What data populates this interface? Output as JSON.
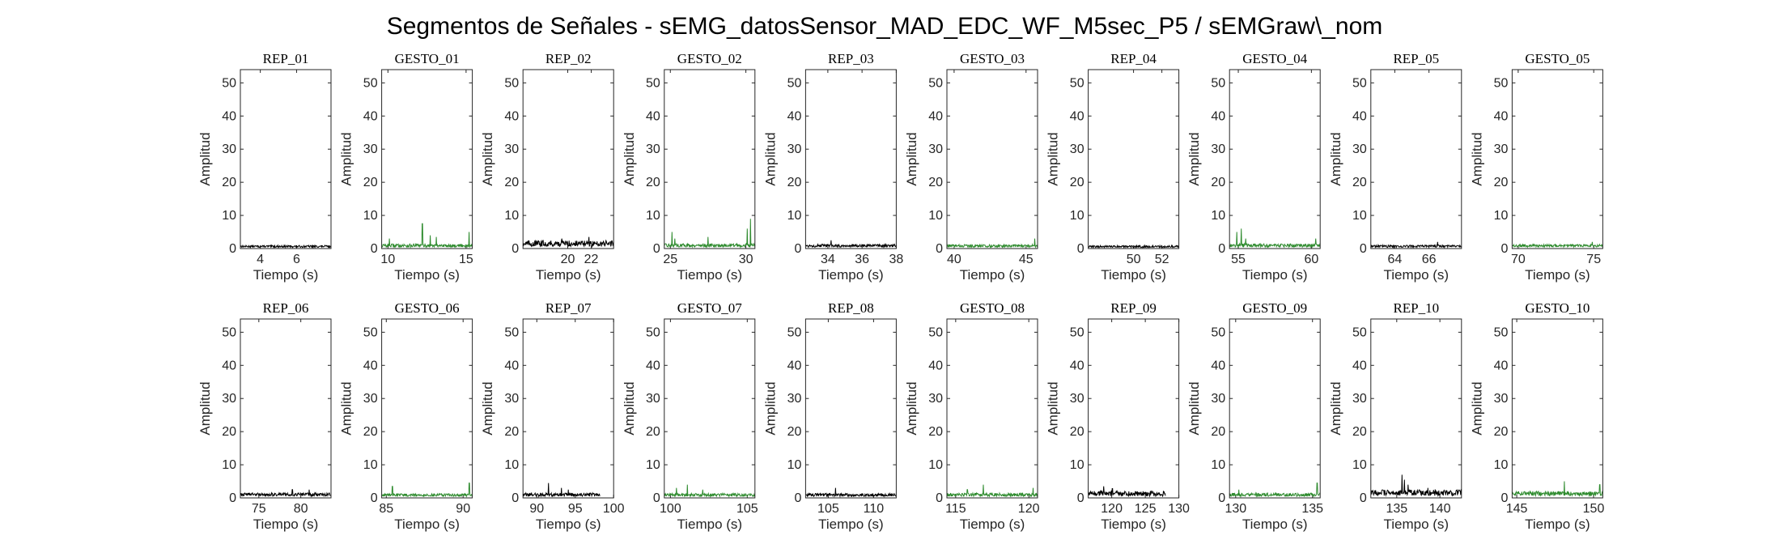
{
  "figure": {
    "title": "Segmentos de Señales - sEMG_datosSensor_MAD_EDC_WF_M5sec_P5 / sEMGraw\\_nom"
  },
  "colors": {
    "rep": "#000000",
    "gesto": "#2e8b2e"
  },
  "chart_data": [
    {
      "type": "line",
      "title": "REP_01",
      "xlabel": "Tiempo (s)",
      "ylabel": "Amplitud",
      "xlim": [
        2.9,
        7.9
      ],
      "xticks": [
        4,
        6
      ],
      "ylim": [
        0,
        54
      ],
      "yticks": [
        0,
        10,
        20,
        30,
        40,
        50
      ],
      "kind": "rep",
      "series": [
        {
          "base": 0.7,
          "noise": 0.6,
          "spikes": []
        }
      ]
    },
    {
      "type": "line",
      "title": "GESTO_01",
      "xlabel": "Tiempo (s)",
      "ylabel": "Amplitud",
      "xlim": [
        9.6,
        15.4
      ],
      "xticks": [
        10,
        15
      ],
      "ylim": [
        0,
        54
      ],
      "yticks": [
        0,
        10,
        20,
        30,
        40,
        50
      ],
      "kind": "gesto",
      "series": [
        {
          "base": 0.8,
          "noise": 1.0,
          "spikes": [
            [
              10.1,
              3
            ],
            [
              12.2,
              7.5
            ],
            [
              12.7,
              4
            ],
            [
              13.1,
              3.5
            ],
            [
              15.2,
              5
            ]
          ]
        }
      ]
    },
    {
      "type": "line",
      "title": "REP_02",
      "xlabel": "Tiempo (s)",
      "ylabel": "Amplitud",
      "xlim": [
        16.2,
        23.9
      ],
      "xticks": [
        20,
        22
      ],
      "ylim": [
        0,
        54
      ],
      "yticks": [
        0,
        10,
        20,
        30,
        40,
        50
      ],
      "kind": "rep",
      "series": [
        {
          "base": 1.2,
          "noise": 1.8,
          "spikes": [
            [
              19.5,
              3
            ],
            [
              21.8,
              3.5
            ]
          ]
        }
      ]
    },
    {
      "type": "line",
      "title": "GESTO_02",
      "xlabel": "Tiempo (s)",
      "ylabel": "Amplitud",
      "xlim": [
        24.6,
        30.6
      ],
      "xticks": [
        25,
        30
      ],
      "ylim": [
        0,
        54
      ],
      "yticks": [
        0,
        10,
        20,
        30,
        40,
        50
      ],
      "kind": "gesto",
      "series": [
        {
          "base": 0.9,
          "noise": 1.0,
          "spikes": [
            [
              25.1,
              5
            ],
            [
              25.3,
              3
            ],
            [
              27.5,
              3.5
            ],
            [
              30.1,
              6
            ],
            [
              30.3,
              9
            ]
          ]
        }
      ]
    },
    {
      "type": "line",
      "title": "REP_03",
      "xlabel": "Tiempo (s)",
      "ylabel": "Amplitud",
      "xlim": [
        32.7,
        38
      ],
      "xticks": [
        34,
        36,
        38
      ],
      "ylim": [
        0,
        54
      ],
      "yticks": [
        0,
        10,
        20,
        30,
        40,
        50
      ],
      "kind": "rep",
      "series": [
        {
          "base": 0.8,
          "noise": 0.9,
          "spikes": [
            [
              34.2,
              2.5
            ]
          ]
        }
      ]
    },
    {
      "type": "line",
      "title": "GESTO_03",
      "xlabel": "Tiempo (s)",
      "ylabel": "Amplitud",
      "xlim": [
        39.5,
        45.8
      ],
      "xticks": [
        40,
        45
      ],
      "ylim": [
        0,
        54
      ],
      "yticks": [
        0,
        10,
        20,
        30,
        40,
        50
      ],
      "kind": "gesto",
      "series": [
        {
          "base": 0.8,
          "noise": 0.8,
          "spikes": [
            [
              45.6,
              3
            ]
          ]
        }
      ]
    },
    {
      "type": "line",
      "title": "REP_04",
      "xlabel": "Tiempo (s)",
      "ylabel": "Amplitud",
      "xlim": [
        46.8,
        53.2
      ],
      "xticks": [
        50,
        52
      ],
      "ylim": [
        0,
        54
      ],
      "yticks": [
        0,
        10,
        20,
        30,
        40,
        50
      ],
      "kind": "rep",
      "series": [
        {
          "base": 0.6,
          "noise": 0.6,
          "spikes": []
        }
      ]
    },
    {
      "type": "line",
      "title": "GESTO_04",
      "xlabel": "Tiempo (s)",
      "ylabel": "Amplitud",
      "xlim": [
        54.4,
        60.6
      ],
      "xticks": [
        55,
        60
      ],
      "ylim": [
        0,
        54
      ],
      "yticks": [
        0,
        10,
        20,
        30,
        40,
        50
      ],
      "kind": "gesto",
      "series": [
        {
          "base": 0.9,
          "noise": 1.0,
          "spikes": [
            [
              54.9,
              5
            ],
            [
              55.2,
              6
            ],
            [
              55.5,
              3
            ],
            [
              60.3,
              3
            ]
          ]
        }
      ]
    },
    {
      "type": "line",
      "title": "REP_05",
      "xlabel": "Tiempo (s)",
      "ylabel": "Amplitud",
      "xlim": [
        62.6,
        67.9
      ],
      "xticks": [
        64,
        66
      ],
      "ylim": [
        0,
        54
      ],
      "yticks": [
        0,
        10,
        20,
        30,
        40,
        50
      ],
      "kind": "rep",
      "series": [
        {
          "base": 0.7,
          "noise": 0.7,
          "spikes": [
            [
              66.5,
              2
            ]
          ]
        }
      ]
    },
    {
      "type": "line",
      "title": "GESTO_05",
      "xlabel": "Tiempo (s)",
      "ylabel": "Amplitud",
      "xlim": [
        69.6,
        75.6
      ],
      "xticks": [
        70,
        75
      ],
      "ylim": [
        0,
        54
      ],
      "yticks": [
        0,
        10,
        20,
        30,
        40,
        50
      ],
      "kind": "gesto",
      "series": [
        {
          "base": 0.9,
          "noise": 0.8,
          "spikes": [
            [
              74.9,
              2
            ]
          ]
        }
      ]
    },
    {
      "type": "line",
      "title": "REP_06",
      "xlabel": "Tiempo (s)",
      "ylabel": "Amplitud",
      "xlim": [
        72.8,
        83.6
      ],
      "xticks": [
        75,
        80
      ],
      "ylim": [
        0,
        54
      ],
      "yticks": [
        0,
        10,
        20,
        30,
        40,
        50
      ],
      "kind": "rep",
      "series": [
        {
          "base": 1.1,
          "noise": 1.0,
          "spikes": [
            [
              79,
              2.5
            ],
            [
              81,
              2.5
            ]
          ]
        }
      ]
    },
    {
      "type": "line",
      "title": "GESTO_06",
      "xlabel": "Tiempo (s)",
      "ylabel": "Amplitud",
      "xlim": [
        84.7,
        90.6
      ],
      "xticks": [
        85,
        90
      ],
      "ylim": [
        0,
        54
      ],
      "yticks": [
        0,
        10,
        20,
        30,
        40,
        50
      ],
      "kind": "gesto",
      "series": [
        {
          "base": 0.9,
          "noise": 0.8,
          "spikes": [
            [
              85.4,
              3.5
            ],
            [
              90.4,
              4.5
            ]
          ]
        }
      ]
    },
    {
      "type": "line",
      "title": "REP_07",
      "xlabel": "Tiempo (s)",
      "ylabel": "Amplitud",
      "xlim": [
        88.2,
        100
      ],
      "xticks": [
        90,
        95,
        100
      ],
      "ylim": [
        0,
        54
      ],
      "yticks": [
        0,
        10,
        20,
        30,
        40,
        50
      ],
      "kind": "rep",
      "series": [
        {
          "base": 0.8,
          "noise": 1.1,
          "xmax": 98.2,
          "spikes": [
            [
              91.5,
              4.5
            ],
            [
              93.2,
              3
            ],
            [
              94.1,
              2.5
            ]
          ]
        }
      ]
    },
    {
      "type": "line",
      "title": "GESTO_07",
      "xlabel": "Tiempo (s)",
      "ylabel": "Amplitud",
      "xlim": [
        99.6,
        105.5
      ],
      "xticks": [
        100,
        105
      ],
      "ylim": [
        0,
        54
      ],
      "yticks": [
        0,
        10,
        20,
        30,
        40,
        50
      ],
      "kind": "gesto",
      "series": [
        {
          "base": 0.9,
          "noise": 0.9,
          "spikes": [
            [
              100.4,
              3
            ],
            [
              101.1,
              4
            ],
            [
              102.1,
              2.5
            ]
          ]
        }
      ]
    },
    {
      "type": "line",
      "title": "REP_08",
      "xlabel": "Tiempo (s)",
      "ylabel": "Amplitud",
      "xlim": [
        102.5,
        112.5
      ],
      "xticks": [
        105,
        110
      ],
      "ylim": [
        0,
        54
      ],
      "yticks": [
        0,
        10,
        20,
        30,
        40,
        50
      ],
      "kind": "rep",
      "series": [
        {
          "base": 0.9,
          "noise": 0.9,
          "spikes": [
            [
              105.8,
              3
            ]
          ]
        }
      ]
    },
    {
      "type": "line",
      "title": "GESTO_08",
      "xlabel": "Tiempo (s)",
      "ylabel": "Amplitud",
      "xlim": [
        114.4,
        120.6
      ],
      "xticks": [
        115,
        120
      ],
      "ylim": [
        0,
        54
      ],
      "yticks": [
        0,
        10,
        20,
        30,
        40,
        50
      ],
      "kind": "gesto",
      "series": [
        {
          "base": 0.9,
          "noise": 1.0,
          "spikes": [
            [
              115.8,
              2.5
            ],
            [
              116.9,
              4
            ],
            [
              120.3,
              3
            ]
          ]
        }
      ]
    },
    {
      "type": "line",
      "title": "REP_09",
      "xlabel": "Tiempo (s)",
      "ylabel": "Amplitud",
      "xlim": [
        116.5,
        130
      ],
      "xticks": [
        120,
        125,
        130
      ],
      "ylim": [
        0,
        54
      ],
      "yticks": [
        0,
        10,
        20,
        30,
        40,
        50
      ],
      "kind": "rep",
      "series": [
        {
          "base": 1.0,
          "noise": 1.6,
          "xmax": 128,
          "spikes": [
            [
              118.8,
              3.5
            ],
            [
              120.1,
              2.8
            ]
          ]
        }
      ]
    },
    {
      "type": "line",
      "title": "GESTO_09",
      "xlabel": "Tiempo (s)",
      "ylabel": "Amplitud",
      "xlim": [
        129.6,
        135.5
      ],
      "xticks": [
        130,
        135
      ],
      "ylim": [
        0,
        54
      ],
      "yticks": [
        0,
        10,
        20,
        30,
        40,
        50
      ],
      "kind": "gesto",
      "series": [
        {
          "base": 0.9,
          "noise": 1.0,
          "spikes": [
            [
              130.2,
              2.5
            ],
            [
              135.3,
              4.5
            ]
          ]
        }
      ]
    },
    {
      "type": "line",
      "title": "REP_10",
      "xlabel": "Tiempo (s)",
      "ylabel": "Amplitud",
      "xlim": [
        132,
        142.5
      ],
      "xticks": [
        135,
        140
      ],
      "ylim": [
        0,
        54
      ],
      "yticks": [
        0,
        10,
        20,
        30,
        40,
        50
      ],
      "kind": "rep",
      "series": [
        {
          "base": 1.3,
          "noise": 1.8,
          "spikes": [
            [
              135.6,
              7
            ],
            [
              135.9,
              5.5
            ],
            [
              136.3,
              4
            ],
            [
              138.6,
              3
            ]
          ]
        }
      ]
    },
    {
      "type": "line",
      "title": "GESTO_10",
      "xlabel": "Tiempo (s)",
      "ylabel": "Amplitud",
      "xlim": [
        144.7,
        150.6
      ],
      "xticks": [
        145,
        150
      ],
      "ylim": [
        0,
        54
      ],
      "yticks": [
        0,
        10,
        20,
        30,
        40,
        50
      ],
      "kind": "gesto",
      "series": [
        {
          "base": 1.2,
          "noise": 1.4,
          "spikes": [
            [
              148.1,
              5
            ],
            [
              150.4,
              4
            ]
          ]
        }
      ]
    }
  ]
}
